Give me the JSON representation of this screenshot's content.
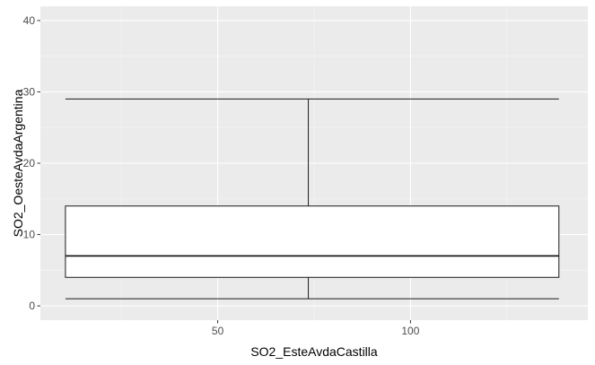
{
  "chart_data": {
    "type": "boxplot",
    "xlabel": "SO2_EsteAvdaCastilla",
    "ylabel": "SO2_OesteAvdaArgentina",
    "xlim": [
      4,
      146
    ],
    "ylim": [
      -2,
      42
    ],
    "x_ticks": [
      50,
      100
    ],
    "x_minor_ticks": [
      25,
      75,
      125
    ],
    "y_ticks": [
      0,
      10,
      20,
      30,
      40
    ],
    "y_minor_ticks": [
      5,
      15,
      25,
      35
    ],
    "grid": true,
    "box": {
      "x_center": 73.5,
      "x_min": 10.5,
      "x_max": 138.5,
      "whisker_low": 1,
      "q1": 4,
      "median": 7,
      "q3": 14,
      "whisker_high": 29
    },
    "colors": {
      "panel_background": "#ebebeb",
      "grid_major": "#ffffff",
      "grid_minor": "#f5f5f5",
      "box_fill": "#ffffff",
      "box_stroke": "#1a1a1a",
      "tick_label": "#4d4d4d",
      "axis_title": "#000000"
    }
  }
}
